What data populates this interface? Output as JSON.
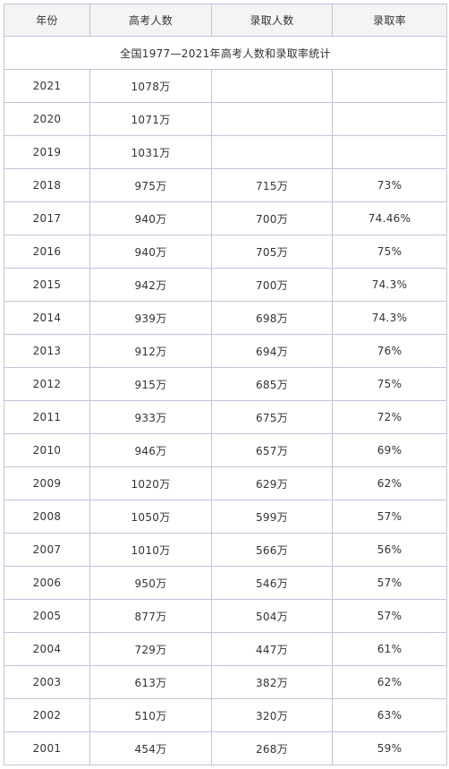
{
  "table": {
    "headers": [
      "年份",
      "高考人数",
      "录取人数",
      "录取率"
    ],
    "caption": "全国1977—2021年高考人数和录取率统计",
    "rows": [
      {
        "year": "2021",
        "applicants": "1078万",
        "admitted": "",
        "rate": ""
      },
      {
        "year": "2020",
        "applicants": "1071万",
        "admitted": "",
        "rate": ""
      },
      {
        "year": "2019",
        "applicants": "1031万",
        "admitted": "",
        "rate": ""
      },
      {
        "year": "2018",
        "applicants": "975万",
        "admitted": "715万",
        "rate": "73%"
      },
      {
        "year": "2017",
        "applicants": "940万",
        "admitted": "700万",
        "rate": "74.46%"
      },
      {
        "year": "2016",
        "applicants": "940万",
        "admitted": "705万",
        "rate": "75%"
      },
      {
        "year": "2015",
        "applicants": "942万",
        "admitted": "700万",
        "rate": "74.3%"
      },
      {
        "year": "2014",
        "applicants": "939万",
        "admitted": "698万",
        "rate": "74.3%"
      },
      {
        "year": "2013",
        "applicants": "912万",
        "admitted": "694万",
        "rate": "76%"
      },
      {
        "year": "2012",
        "applicants": "915万",
        "admitted": "685万",
        "rate": "75%"
      },
      {
        "year": "2011",
        "applicants": "933万",
        "admitted": "675万",
        "rate": "72%"
      },
      {
        "year": "2010",
        "applicants": "946万",
        "admitted": "657万",
        "rate": "69%"
      },
      {
        "year": "2009",
        "applicants": "1020万",
        "admitted": "629万",
        "rate": "62%"
      },
      {
        "year": "2008",
        "applicants": "1050万",
        "admitted": "599万",
        "rate": "57%"
      },
      {
        "year": "2007",
        "applicants": "1010万",
        "admitted": "566万",
        "rate": "56%"
      },
      {
        "year": "2006",
        "applicants": "950万",
        "admitted": "546万",
        "rate": "57%"
      },
      {
        "year": "2005",
        "applicants": "877万",
        "admitted": "504万",
        "rate": "57%"
      },
      {
        "year": "2004",
        "applicants": "729万",
        "admitted": "447万",
        "rate": "61%"
      },
      {
        "year": "2003",
        "applicants": "613万",
        "admitted": "382万",
        "rate": "62%"
      },
      {
        "year": "2002",
        "applicants": "510万",
        "admitted": "320万",
        "rate": "63%"
      },
      {
        "year": "2001",
        "applicants": "454万",
        "admitted": "268万",
        "rate": "59%"
      }
    ]
  },
  "colors": {
    "border": "#c8c0d8",
    "header_background": "#f4f4f4",
    "text": "#333333"
  }
}
